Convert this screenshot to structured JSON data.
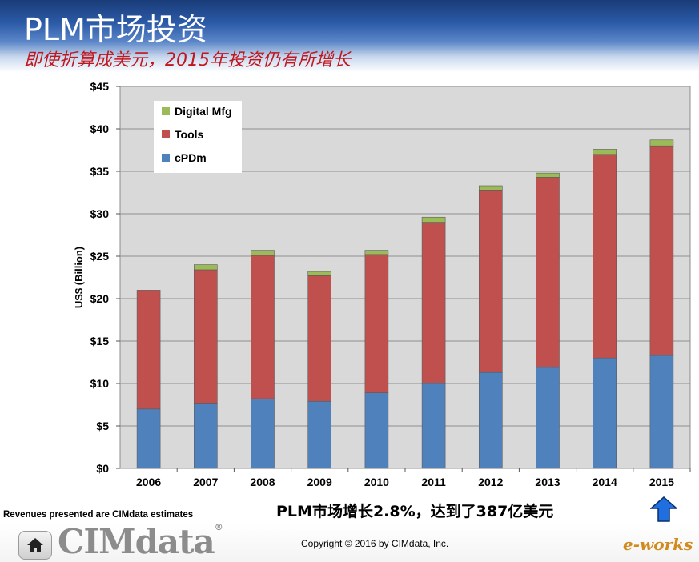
{
  "slide": {
    "title": "PLM市场投资",
    "subtitle": "即使折算成美元，2015年投资仍有所增长",
    "note": "Revenues presented are CIMdata estimates",
    "growth_text": "PLM市场增长2.8%，达到了387亿美元",
    "copyright": "Copyright © 2016 by CIMdata, Inc.",
    "logo": "CIMdata",
    "logo_mark": "®",
    "brand": "e-works"
  },
  "colors": {
    "cPDm": "#4f81bd",
    "Tools": "#c0504d",
    "Digital Mfg": "#9bbb59",
    "plot_bg": "#d9d9d9",
    "arrow": "#1f6fe0"
  },
  "icons": [
    "home-icon",
    "up-arrow-icon"
  ],
  "chart_data": {
    "type": "bar",
    "stacked": true,
    "categories": [
      "2006",
      "2007",
      "2008",
      "2009",
      "2010",
      "2011",
      "2012",
      "2013",
      "2014",
      "2015"
    ],
    "series": [
      {
        "name": "cPDm",
        "values": [
          7.0,
          7.6,
          8.2,
          7.9,
          8.9,
          10.0,
          11.3,
          11.9,
          13.0,
          13.3
        ]
      },
      {
        "name": "Tools",
        "values": [
          14.0,
          15.8,
          16.9,
          14.8,
          16.3,
          19.0,
          21.5,
          22.4,
          24.0,
          24.7
        ]
      },
      {
        "name": "Digital Mfg",
        "values": [
          0.0,
          0.6,
          0.6,
          0.5,
          0.5,
          0.6,
          0.5,
          0.5,
          0.6,
          0.7
        ]
      }
    ],
    "legend_order": [
      "Digital Mfg",
      "Tools",
      "cPDm"
    ],
    "ylabel": "US$ (Billion)",
    "ylim": [
      0,
      45
    ],
    "yticks": [
      0,
      5,
      10,
      15,
      20,
      25,
      30,
      35,
      40,
      45
    ],
    "ytick_labels": [
      "$0",
      "$5",
      "$10",
      "$15",
      "$20",
      "$25",
      "$30",
      "$35",
      "$40",
      "$45"
    ],
    "grid": true,
    "legend_position": "top-left"
  }
}
